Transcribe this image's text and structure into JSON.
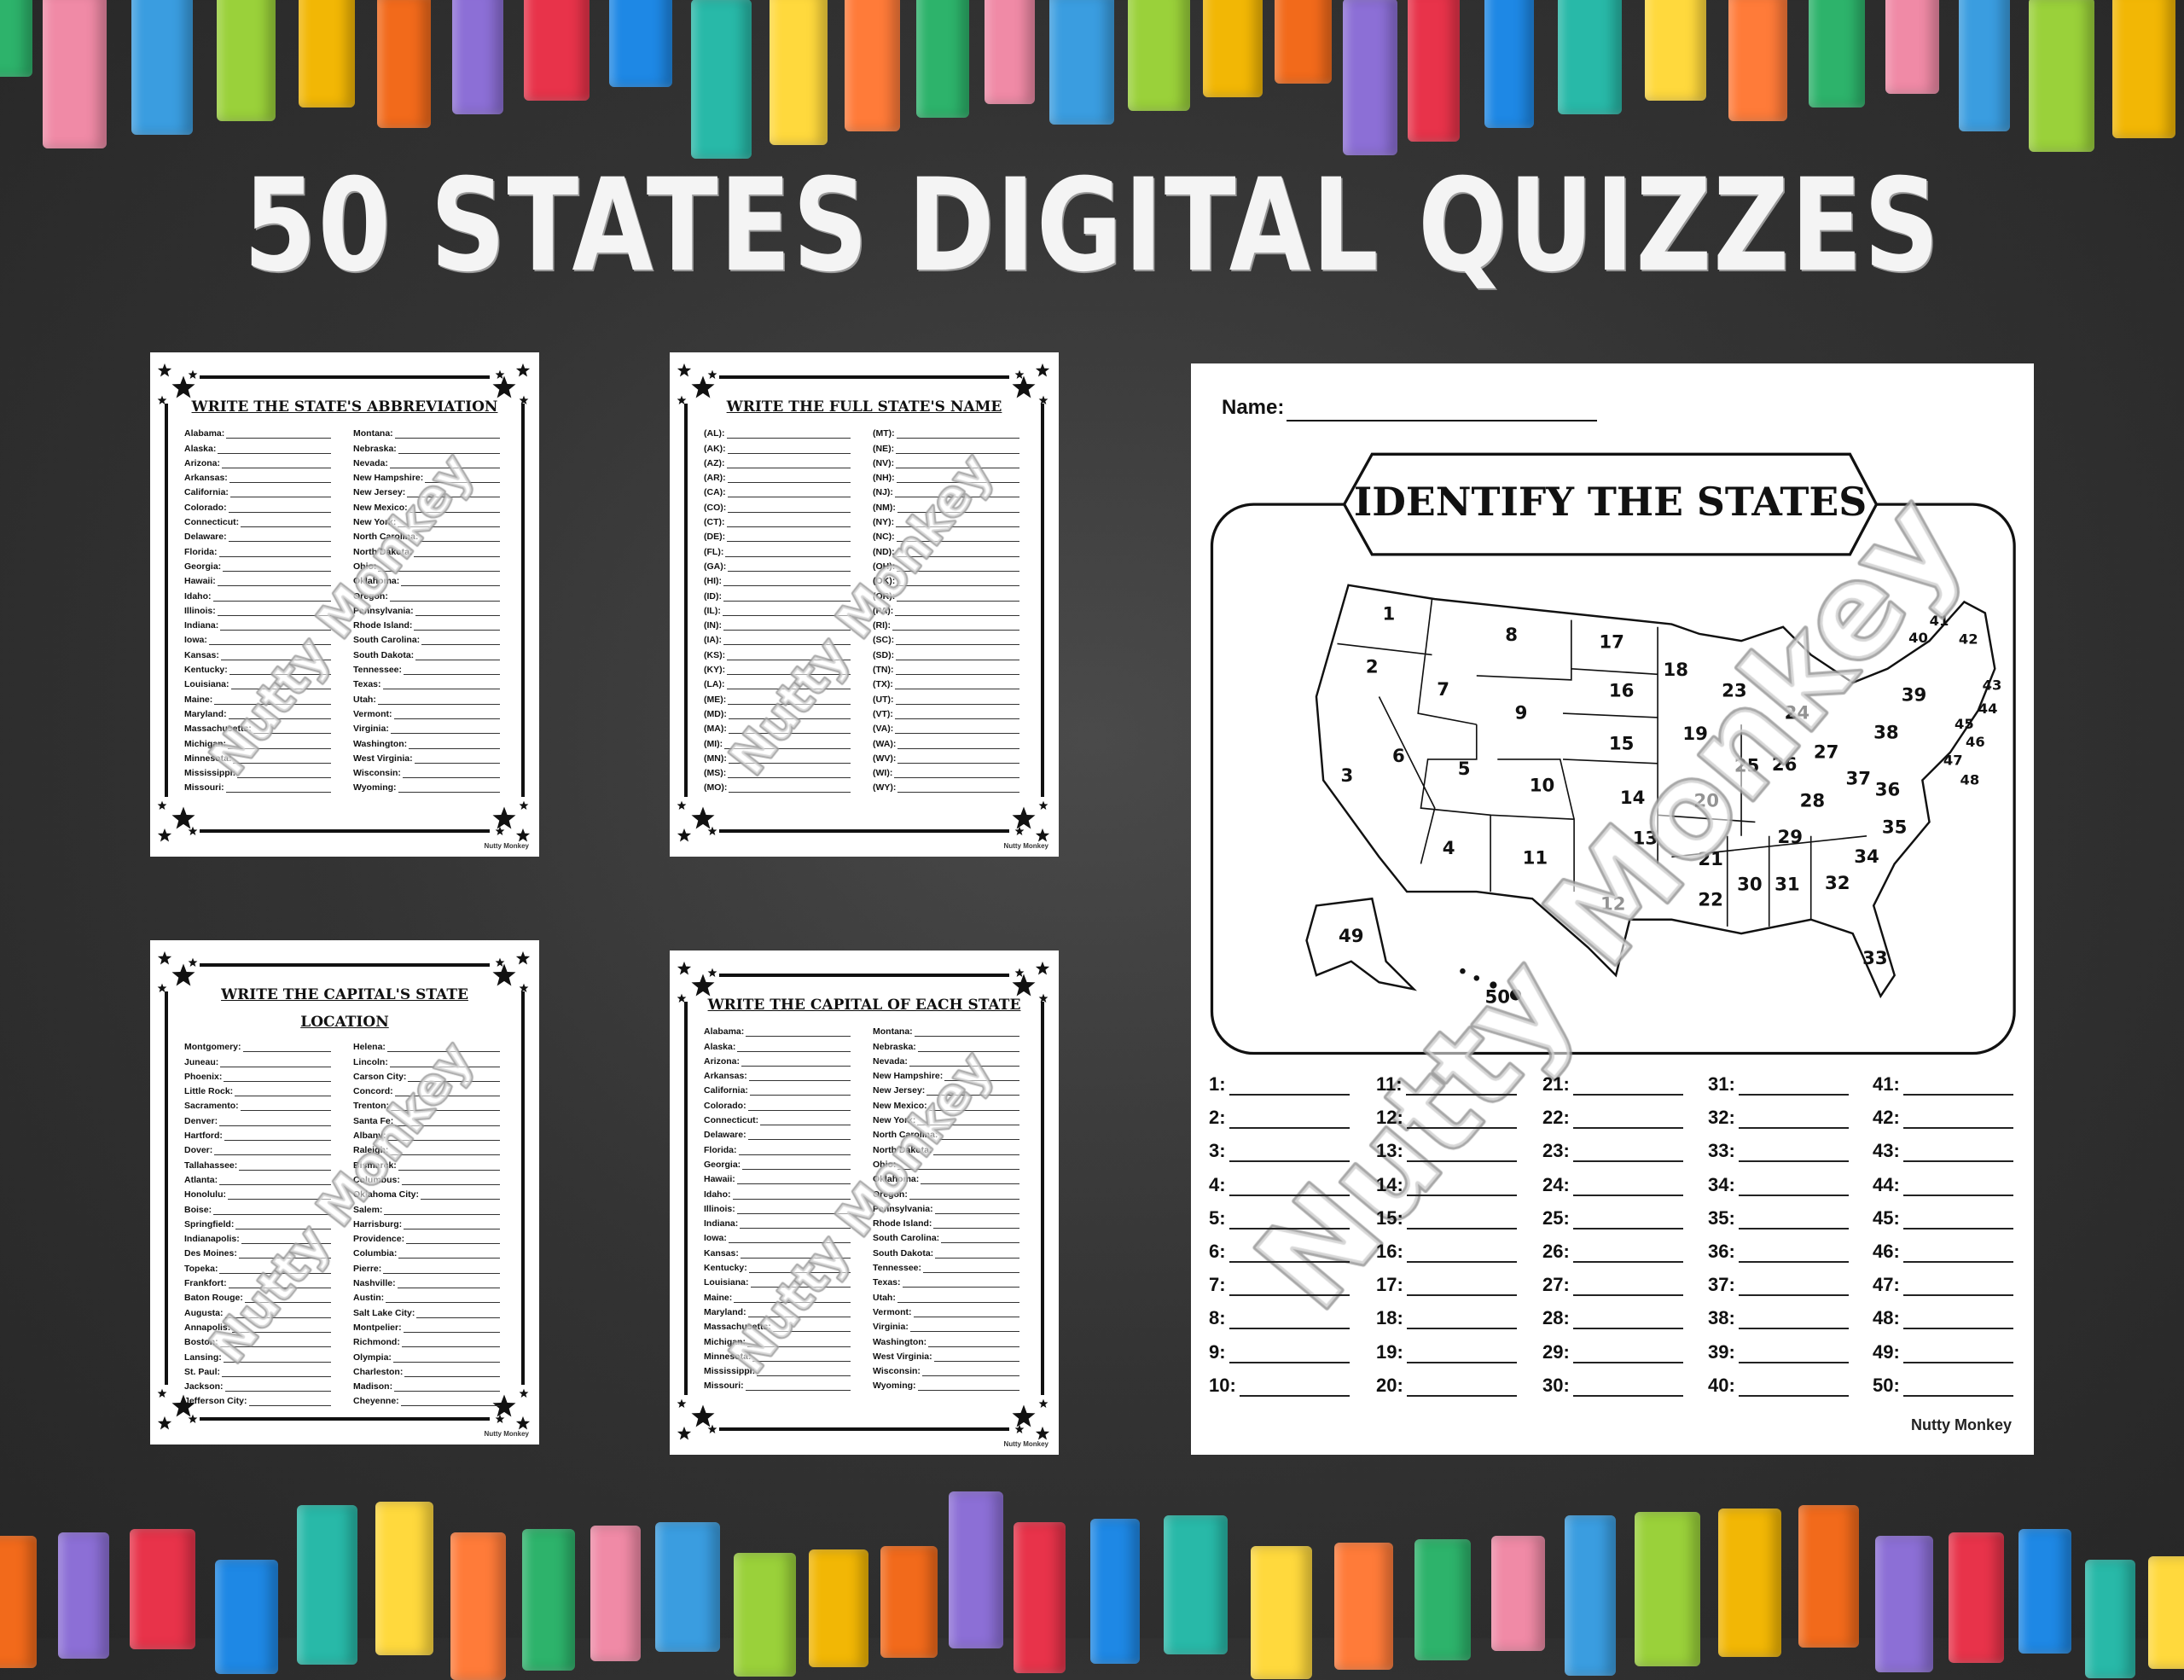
{
  "title": "50 STATES DIGITAL QUIZZES",
  "chalk_colors": [
    "#2db36b",
    "#f08aa6",
    "#3a9de0",
    "#9ad13a",
    "#f2b705",
    "#f26a1b",
    "#8c6fd6",
    "#e8334a",
    "#1e88e5",
    "#28b9a8",
    "#ffd93d",
    "#ff7b39"
  ],
  "watermark": "Nutty Monkey",
  "worksheets": [
    {
      "title": "WRITE THE STATE'S ABBREVIATION",
      "footer": "Nutty Monkey",
      "left": [
        "Alabama:",
        "Alaska:",
        "Arizona:",
        "Arkansas:",
        "California:",
        "Colorado:",
        "Connecticut:",
        "Delaware:",
        "Florida:",
        "Georgia:",
        "Hawaii:",
        "Idaho:",
        "Illinois:",
        "Indiana:",
        "Iowa:",
        "Kansas:",
        "Kentucky:",
        "Louisiana:",
        "Maine:",
        "Maryland:",
        "Massachusetts:",
        "Michigan:",
        "Minnesota:",
        "Mississippi:",
        "Missouri:"
      ],
      "right": [
        "Montana:",
        "Nebraska:",
        "Nevada:",
        "New Hampshire:",
        "New Jersey:",
        "New Mexico:",
        "New York:",
        "North Carolina:",
        "North Dakota:",
        "Ohio:",
        "Oklahoma:",
        "Oregon:",
        "Pennsylvania:",
        "Rhode Island:",
        "South Carolina:",
        "South Dakota:",
        "Tennessee:",
        "Texas:",
        "Utah:",
        "Vermont:",
        "Virginia:",
        "Washington:",
        "West Virginia:",
        "Wisconsin:",
        "Wyoming:"
      ]
    },
    {
      "title": "WRITE THE FULL STATE'S NAME",
      "footer": "Nutty Monkey",
      "left": [
        "(AL):",
        "(AK):",
        "(AZ):",
        "(AR):",
        "(CA):",
        "(CO):",
        "(CT):",
        "(DE):",
        "(FL):",
        "(GA):",
        "(HI):",
        "(ID):",
        "(IL):",
        "(IN):",
        "(IA):",
        "(KS):",
        "(KY):",
        "(LA):",
        "(ME):",
        "(MD):",
        "(MA):",
        "(MI):",
        "(MN):",
        "(MS):",
        "(MO):"
      ],
      "right": [
        "(MT):",
        "(NE):",
        "(NV):",
        "(NH):",
        "(NJ):",
        "(NM):",
        "(NY):",
        "(NC):",
        "(ND):",
        "(OH):",
        "(OK):",
        "(OR):",
        "(PA):",
        "(RI):",
        "(SC):",
        "(SD):",
        "(TN):",
        "(TX):",
        "(UT):",
        "(VT):",
        "(VA):",
        "(WA):",
        "(WV):",
        "(WI):",
        "(WY):"
      ]
    },
    {
      "title": "WRITE THE CAPITAL'S STATE LOCATION",
      "footer": "Nutty Monkey",
      "left": [
        "Montgomery:",
        "Juneau:",
        "Phoenix:",
        "Little Rock:",
        "Sacramento:",
        "Denver:",
        "Hartford:",
        "Dover:",
        "Tallahassee:",
        "Atlanta:",
        "Honolulu:",
        "Boise:",
        "Springfield:",
        "Indianapolis:",
        "Des Moines:",
        "Topeka:",
        "Frankfort:",
        "Baton Rouge:",
        "Augusta:",
        "Annapolis:",
        "Boston:",
        "Lansing:",
        "St. Paul:",
        "Jackson:",
        "Jefferson City:"
      ],
      "right": [
        "Helena:",
        "Lincoln:",
        "Carson City:",
        "Concord:",
        "Trenton:",
        "Santa Fe:",
        "Albany:",
        "Raleigh:",
        "Bismarck:",
        "Columbus:",
        "Oklahoma City:",
        "Salem:",
        "Harrisburg:",
        "Providence:",
        "Columbia:",
        "Pierre:",
        "Nashville:",
        "Austin:",
        "Salt Lake City:",
        "Montpelier:",
        "Richmond:",
        "Olympia:",
        "Charleston:",
        "Madison:",
        "Cheyenne:"
      ]
    },
    {
      "title": "WRITE THE CAPITAL OF EACH STATE",
      "footer": "Nutty Monkey",
      "left": [
        "Alabama:",
        "Alaska:",
        "Arizona:",
        "Arkansas:",
        "California:",
        "Colorado:",
        "Connecticut:",
        "Delaware:",
        "Florida:",
        "Georgia:",
        "Hawaii:",
        "Idaho:",
        "Illinois:",
        "Indiana:",
        "Iowa:",
        "Kansas:",
        "Kentucky:",
        "Louisiana:",
        "Maine:",
        "Maryland:",
        "Massachusetts:",
        "Michigan:",
        "Minnesota:",
        "Mississippi:",
        "Missouri:"
      ],
      "right": [
        "Montana:",
        "Nebraska:",
        "Nevada:",
        "New Hampshire:",
        "New Jersey:",
        "New Mexico:",
        "New York:",
        "North Carolina:",
        "North Dakota:",
        "Ohio:",
        "Oklahoma:",
        "Oregon:",
        "Pennsylvania:",
        "Rhode Island:",
        "South Carolina:",
        "South Dakota:",
        "Tennessee:",
        "Texas:",
        "Utah:",
        "Vermont:",
        "Virginia:",
        "Washington:",
        "West Virginia:",
        "Wisconsin:",
        "Wyoming:"
      ]
    }
  ],
  "map_sheet": {
    "name_label": "Name:",
    "title": "IDENTIFY THE STATES",
    "state_numbers": [
      "1",
      "2",
      "3",
      "4",
      "5",
      "6",
      "7",
      "8",
      "9",
      "10",
      "11",
      "12",
      "13",
      "14",
      "15",
      "16",
      "17",
      "18",
      "19",
      "20",
      "21",
      "22",
      "23",
      "24",
      "25",
      "26",
      "27",
      "28",
      "29",
      "30",
      "31",
      "32",
      "33",
      "34",
      "35",
      "36",
      "37",
      "38",
      "39",
      "40",
      "41",
      "42",
      "43",
      "44",
      "45",
      "46",
      "47",
      "48",
      "49",
      "50"
    ],
    "answer_labels": [
      "1:",
      "2:",
      "3:",
      "4:",
      "5:",
      "6:",
      "7:",
      "8:",
      "9:",
      "10:",
      "11:",
      "12:",
      "13:",
      "14:",
      "15:",
      "16:",
      "17:",
      "18:",
      "19:",
      "20:",
      "21:",
      "22:",
      "23:",
      "24:",
      "25:",
      "26:",
      "27:",
      "28:",
      "29:",
      "30:",
      "31:",
      "32:",
      "33:",
      "34:",
      "35:",
      "36:",
      "37:",
      "38:",
      "39:",
      "40:",
      "41:",
      "42:",
      "43:",
      "44:",
      "45:",
      "46:",
      "47:",
      "48:",
      "49:",
      "50:"
    ],
    "footer": "Nutty Monkey"
  }
}
